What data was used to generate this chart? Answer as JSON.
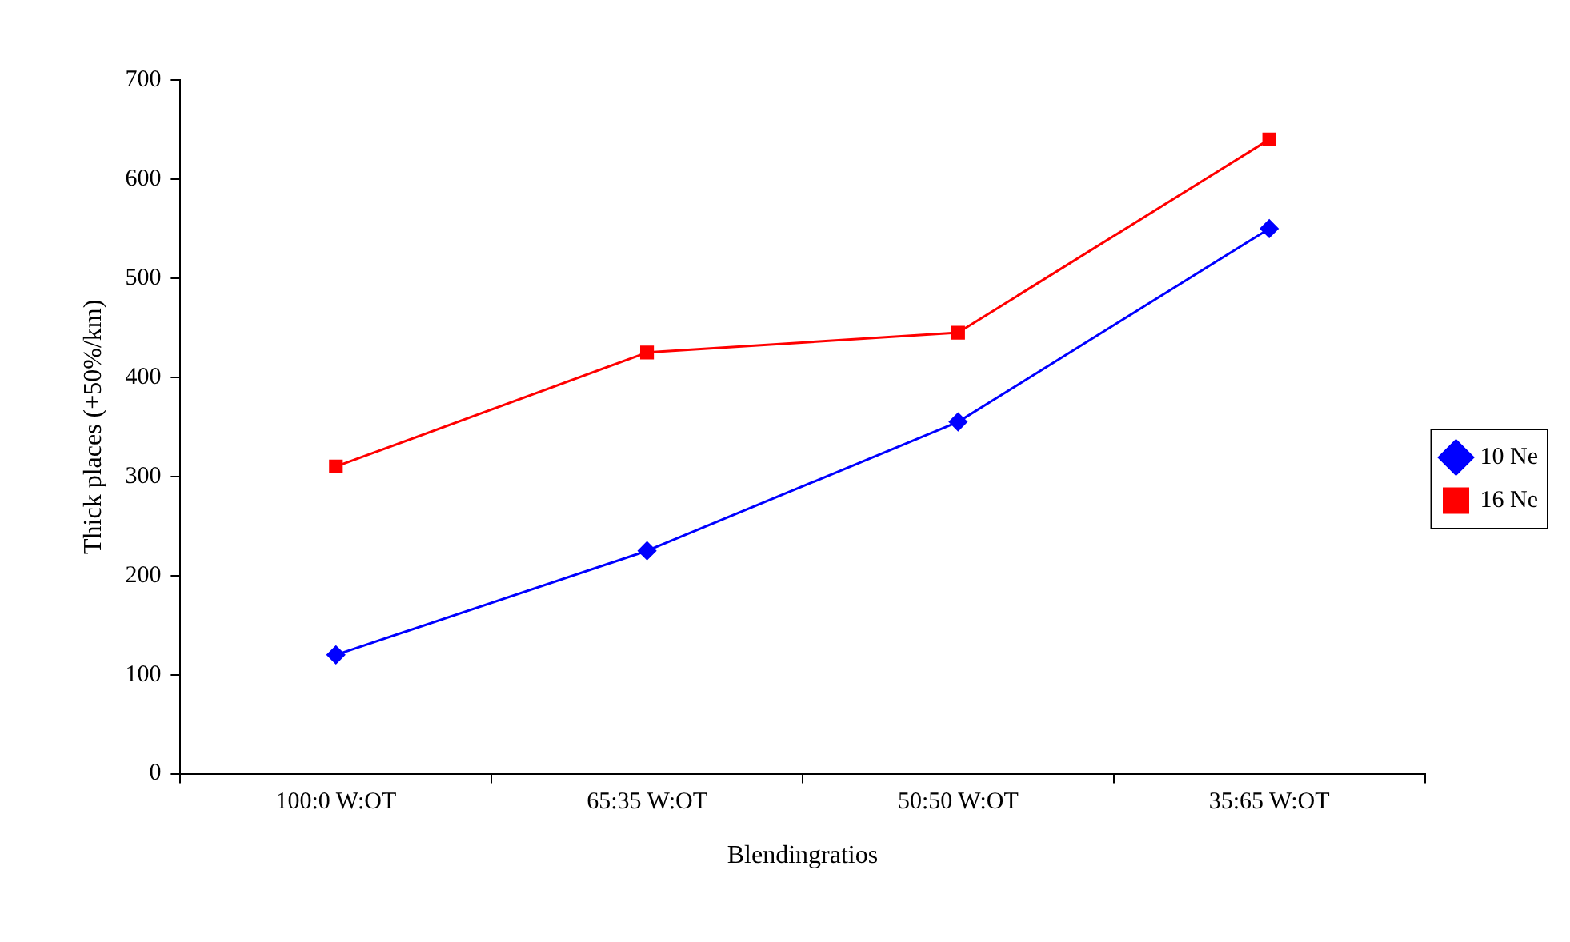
{
  "chart_data": {
    "type": "line",
    "xlabel": "Blendingratios",
    "ylabel": "Thick places (+50%/km)",
    "categories": [
      "100:0 W:OT",
      "65:35 W:OT",
      "50:50 W:OT",
      "35:65 W:OT"
    ],
    "series": [
      {
        "name": "10 Ne",
        "color": "#0000ff",
        "marker": "diamond",
        "values": [
          120,
          225,
          355,
          550
        ]
      },
      {
        "name": "16 Ne",
        "color": "#ff0000",
        "marker": "square",
        "values": [
          310,
          425,
          445,
          640
        ]
      }
    ],
    "ylim": [
      0,
      700
    ],
    "yticks": [
      0,
      100,
      200,
      300,
      400,
      500,
      600,
      700
    ],
    "grid": false,
    "legend": "right",
    "line_style": "solid"
  }
}
